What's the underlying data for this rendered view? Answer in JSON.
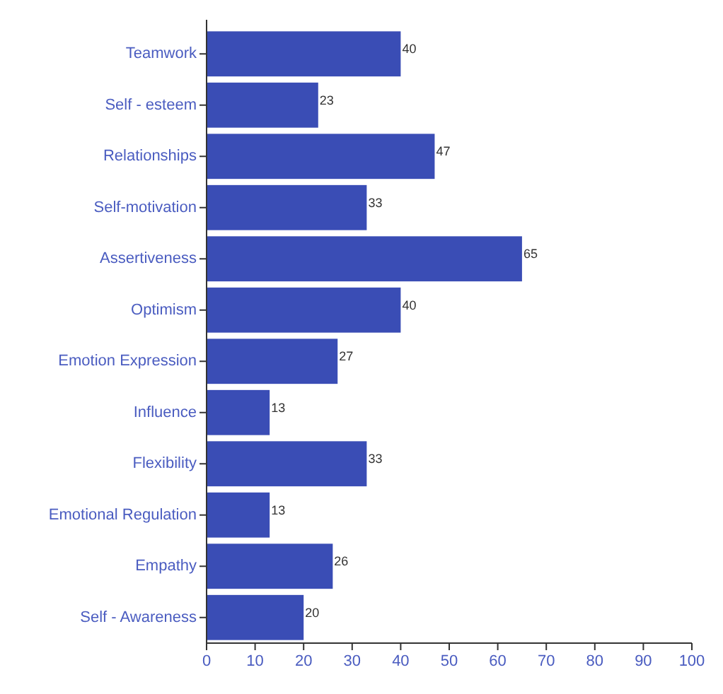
{
  "chart_data": {
    "type": "bar",
    "orientation": "horizontal",
    "categories": [
      "Teamwork",
      "Self - esteem",
      "Relationships",
      "Self-motivation",
      "Assertiveness",
      "Optimism",
      "Emotion Expression",
      "Influence",
      "Flexibility",
      "Emotional Regulation",
      "Empathy",
      "Self - Awareness"
    ],
    "values": [
      40,
      23,
      47,
      33,
      65,
      40,
      27,
      13,
      33,
      13,
      26,
      20
    ],
    "color": "#3a4db5",
    "xlim": [
      0,
      100
    ],
    "xticks": [
      0,
      10,
      20,
      30,
      40,
      50,
      60,
      70,
      80,
      90,
      100
    ],
    "data_labels": true,
    "grid": false
  }
}
